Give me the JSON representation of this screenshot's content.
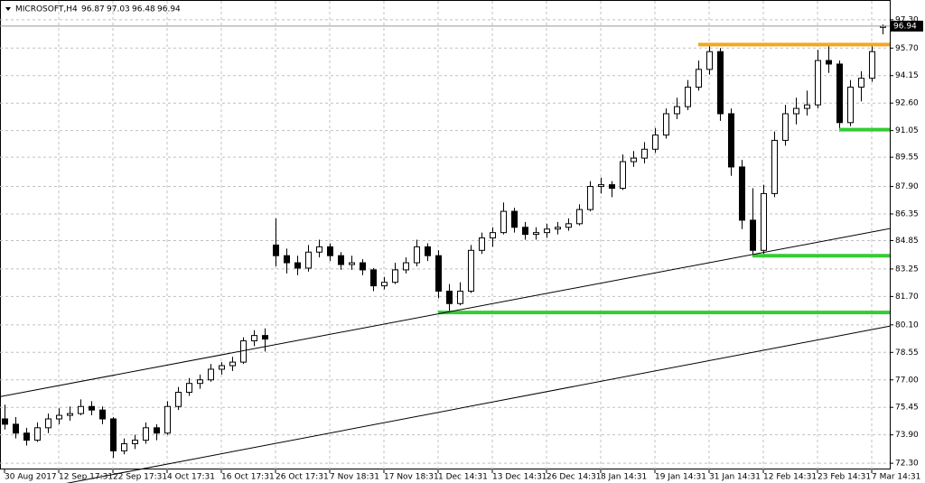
{
  "chart_data": {
    "type": "candlestick",
    "title": "MICROSOFT,H4",
    "categories": [
      "30 Aug 2017",
      null,
      null,
      null,
      null,
      "12 Sep 17:31",
      null,
      null,
      null,
      null,
      "22 Sep 17:31",
      null,
      null,
      null,
      null,
      "4 Oct 17:31",
      null,
      null,
      null,
      null,
      "16 Oct 17:31",
      null,
      null,
      null,
      null,
      "26 Oct 17:31",
      null,
      null,
      null,
      null,
      "7 Nov 18:31",
      null,
      null,
      null,
      null,
      "17 Nov 18:31",
      null,
      null,
      null,
      null,
      "1 Dec 14:31",
      null,
      null,
      null,
      null,
      "13 Dec 14:31",
      null,
      null,
      null,
      null,
      "26 Dec 14:31",
      null,
      null,
      null,
      null,
      "8 Jan 14:31",
      null,
      null,
      null,
      null,
      "19 Jan 14:31",
      null,
      null,
      null,
      null,
      "31 Jan 14:31",
      null,
      null,
      null,
      null,
      "12 Feb 14:31",
      null,
      null,
      null,
      null,
      "23 Feb 14:31",
      null,
      null,
      null,
      null,
      "7 Mar 14:31",
      null
    ],
    "candles": [
      [
        74.8,
        75.6,
        74.2,
        74.5
      ],
      [
        74.5,
        74.9,
        73.7,
        74.0
      ],
      [
        74.0,
        74.3,
        73.3,
        73.6
      ],
      [
        73.6,
        74.6,
        73.5,
        74.3
      ],
      [
        74.3,
        75.1,
        74.0,
        74.8
      ],
      [
        74.8,
        75.4,
        74.5,
        75.0
      ],
      [
        75.0,
        75.5,
        74.7,
        75.1
      ],
      [
        75.1,
        75.9,
        75.0,
        75.5
      ],
      [
        75.5,
        75.8,
        75.0,
        75.3
      ],
      [
        75.3,
        75.5,
        74.5,
        74.8
      ],
      [
        74.8,
        74.9,
        72.6,
        73.0
      ],
      [
        73.0,
        73.7,
        72.8,
        73.4
      ],
      [
        73.4,
        73.9,
        73.1,
        73.6
      ],
      [
        73.6,
        74.6,
        73.4,
        74.3
      ],
      [
        74.3,
        74.5,
        73.6,
        74.0
      ],
      [
        74.0,
        75.8,
        73.9,
        75.5
      ],
      [
        75.5,
        76.6,
        75.3,
        76.3
      ],
      [
        76.3,
        77.1,
        76.1,
        76.8
      ],
      [
        76.8,
        77.3,
        76.5,
        77.0
      ],
      [
        77.0,
        77.9,
        76.9,
        77.6
      ],
      [
        77.6,
        78.0,
        77.3,
        77.8
      ],
      [
        77.8,
        78.3,
        77.5,
        78.0
      ],
      [
        78.0,
        79.4,
        77.9,
        79.2
      ],
      [
        79.2,
        79.8,
        78.9,
        79.5
      ],
      [
        79.5,
        79.9,
        78.6,
        79.3
      ],
      [
        84.6,
        86.1,
        83.4,
        84.0
      ],
      [
        84.0,
        84.4,
        83.0,
        83.6
      ],
      [
        83.6,
        84.0,
        82.9,
        83.3
      ],
      [
        83.3,
        84.6,
        83.1,
        84.2
      ],
      [
        84.2,
        84.9,
        83.9,
        84.5
      ],
      [
        84.5,
        84.7,
        83.7,
        84.0
      ],
      [
        84.0,
        84.2,
        83.2,
        83.5
      ],
      [
        83.5,
        84.0,
        83.2,
        83.6
      ],
      [
        83.6,
        83.8,
        82.9,
        83.2
      ],
      [
        83.2,
        83.3,
        82.0,
        82.3
      ],
      [
        82.3,
        82.8,
        82.1,
        82.5
      ],
      [
        82.5,
        83.6,
        82.4,
        83.2
      ],
      [
        83.2,
        83.9,
        83.0,
        83.6
      ],
      [
        83.6,
        84.9,
        83.4,
        84.5
      ],
      [
        84.5,
        84.7,
        83.7,
        84.0
      ],
      [
        84.0,
        84.3,
        81.6,
        82.0
      ],
      [
        82.0,
        82.4,
        80.8,
        81.3
      ],
      [
        81.3,
        82.5,
        81.2,
        82.0
      ],
      [
        82.0,
        84.6,
        81.9,
        84.3
      ],
      [
        84.3,
        85.3,
        84.1,
        85.0
      ],
      [
        85.0,
        85.6,
        84.5,
        85.3
      ],
      [
        85.3,
        87.0,
        85.2,
        86.5
      ],
      [
        86.5,
        86.7,
        85.3,
        85.6
      ],
      [
        85.6,
        85.9,
        84.9,
        85.2
      ],
      [
        85.2,
        85.6,
        84.9,
        85.3
      ],
      [
        85.3,
        85.8,
        85.0,
        85.5
      ],
      [
        85.5,
        85.9,
        85.2,
        85.6
      ],
      [
        85.6,
        86.1,
        85.4,
        85.8
      ],
      [
        85.8,
        86.9,
        85.7,
        86.6
      ],
      [
        86.6,
        88.2,
        86.5,
        87.9
      ],
      [
        87.9,
        88.4,
        87.5,
        88.0
      ],
      [
        88.0,
        88.2,
        87.3,
        87.8
      ],
      [
        87.8,
        89.7,
        87.7,
        89.3
      ],
      [
        89.3,
        89.9,
        89.0,
        89.5
      ],
      [
        89.5,
        90.4,
        89.2,
        90.0
      ],
      [
        90.0,
        91.2,
        89.8,
        90.8
      ],
      [
        90.8,
        92.3,
        90.6,
        92.0
      ],
      [
        92.0,
        92.9,
        91.7,
        92.4
      ],
      [
        92.4,
        93.9,
        92.2,
        93.5
      ],
      [
        93.5,
        95.0,
        93.3,
        94.5
      ],
      [
        94.5,
        95.9,
        94.2,
        95.5
      ],
      [
        95.5,
        95.7,
        91.6,
        92.0
      ],
      [
        92.0,
        92.3,
        88.5,
        89.0
      ],
      [
        89.0,
        89.4,
        85.5,
        86.0
      ],
      [
        86.0,
        87.8,
        84.0,
        84.3
      ],
      [
        84.3,
        88.0,
        84.1,
        87.5
      ],
      [
        87.5,
        91.0,
        87.3,
        90.5
      ],
      [
        90.5,
        92.5,
        90.2,
        92.0
      ],
      [
        92.0,
        92.9,
        91.4,
        92.3
      ],
      [
        92.3,
        93.3,
        91.9,
        92.5
      ],
      [
        92.5,
        95.6,
        92.3,
        95.0
      ],
      [
        95.0,
        95.9,
        94.3,
        94.8
      ],
      [
        94.8,
        95.0,
        91.0,
        91.5
      ],
      [
        91.5,
        93.9,
        91.3,
        93.5
      ],
      [
        93.5,
        94.4,
        92.7,
        94.0
      ],
      [
        94.0,
        95.8,
        93.8,
        95.5
      ],
      [
        96.87,
        97.03,
        96.48,
        96.94
      ]
    ],
    "ylim": [
      71.95,
      97.8
    ],
    "yticks": [
      {
        "value": 97.3,
        "label": "97.30"
      },
      {
        "value": 95.7,
        "label": "95.70"
      },
      94.15,
      {
        "value": 92.6,
        "label": "92.60"
      },
      91.05,
      89.55,
      {
        "value": 87.9,
        "label": "87.90"
      },
      86.35,
      84.85,
      83.25,
      {
        "value": 81.7,
        "label": "81.70"
      },
      {
        "value": 80.1,
        "label": "80.10"
      },
      78.55,
      {
        "value": 77.0,
        "label": "77.00"
      },
      75.45,
      {
        "value": 73.9,
        "label": "73.90"
      },
      {
        "value": 72.3,
        "label": "72.30"
      }
    ],
    "grid": true,
    "bull_color": "#ffffff",
    "bear_color": "#000000",
    "levels": [
      {
        "value": 95.9,
        "from": 64,
        "color": "#f5a623"
      },
      {
        "value": 91.1,
        "from": 77,
        "color": "#33cc33"
      },
      {
        "value": 84.0,
        "from": 69,
        "color": "#33cc33"
      },
      {
        "value": 80.8,
        "from": 40,
        "color": "#33cc33"
      }
    ],
    "trendlines": [
      {
        "points": [
          [
            0,
            76.1
          ],
          [
            81,
            85.45
          ]
        ]
      },
      {
        "points": [
          [
            12,
            71.9
          ],
          [
            81,
            79.95
          ]
        ]
      }
    ]
  }
}
